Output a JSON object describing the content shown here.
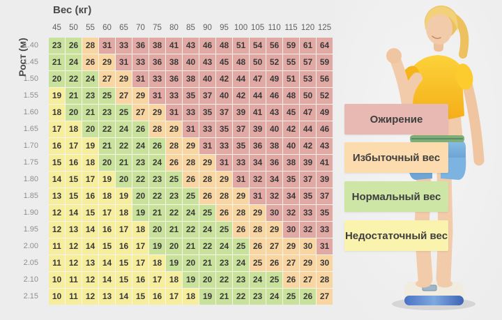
{
  "page": {
    "background": "#ededed"
  },
  "table": {
    "weight_axis_label": "Вес (кг)",
    "height_axis_label": "Рост (м)"
  },
  "legend": {
    "items": [
      {
        "label": "Ожирение",
        "color": "#e7b9b2",
        "code": "R"
      },
      {
        "label": "Избыточный вес",
        "color": "#fcdcae",
        "code": "O"
      },
      {
        "label": "Нормальный вес",
        "color": "#cde6a6",
        "code": "G"
      },
      {
        "label": "Недостаточный вес",
        "color": "#faf3ae",
        "code": "Y"
      }
    ]
  },
  "chart_data": {
    "type": "heatmap",
    "title": "",
    "xlabel": "Вес (кг)",
    "ylabel": "Рост (м)",
    "legend_position": "right",
    "weights_kg": [
      45,
      50,
      55,
      60,
      65,
      70,
      75,
      80,
      85,
      90,
      95,
      100,
      105,
      110,
      115,
      120,
      125
    ],
    "heights_m": [
      "1.40",
      "1.45",
      "1.50",
      "1.55",
      "1.60",
      "1.65",
      "1.70",
      "1.75",
      "1.80",
      "1.85",
      "1.90",
      "1.95",
      "2.00",
      "2.05",
      "2.10",
      "2.15"
    ],
    "bmi_matrix": [
      [
        23,
        26,
        28,
        31,
        33,
        36,
        38,
        41,
        43,
        46,
        48,
        51,
        54,
        56,
        59,
        61,
        64
      ],
      [
        21,
        24,
        26,
        29,
        31,
        33,
        36,
        38,
        40,
        43,
        45,
        48,
        50,
        52,
        55,
        57,
        59
      ],
      [
        20,
        22,
        24,
        27,
        29,
        31,
        33,
        36,
        38,
        40,
        42,
        44,
        47,
        49,
        51,
        53,
        56
      ],
      [
        19,
        21,
        23,
        25,
        27,
        29,
        31,
        33,
        35,
        37,
        40,
        42,
        44,
        46,
        48,
        50,
        52
      ],
      [
        18,
        20,
        21,
        23,
        25,
        27,
        29,
        31,
        33,
        35,
        37,
        39,
        41,
        43,
        45,
        47,
        49
      ],
      [
        17,
        18,
        20,
        22,
        24,
        26,
        28,
        29,
        31,
        33,
        35,
        37,
        39,
        40,
        42,
        44,
        46
      ],
      [
        16,
        17,
        19,
        21,
        22,
        24,
        26,
        28,
        29,
        31,
        33,
        35,
        36,
        38,
        40,
        42,
        43
      ],
      [
        15,
        16,
        18,
        20,
        21,
        23,
        24,
        26,
        28,
        29,
        31,
        33,
        34,
        36,
        38,
        39,
        41
      ],
      [
        14,
        15,
        17,
        19,
        20,
        22,
        23,
        25,
        26,
        28,
        29,
        31,
        32,
        34,
        35,
        37,
        39
      ],
      [
        13,
        15,
        16,
        18,
        19,
        20,
        22,
        23,
        25,
        26,
        28,
        29,
        31,
        32,
        34,
        35,
        37
      ],
      [
        12,
        14,
        15,
        17,
        18,
        19,
        21,
        22,
        24,
        25,
        26,
        28,
        29,
        30,
        32,
        33,
        35
      ],
      [
        12,
        13,
        14,
        16,
        17,
        18,
        20,
        21,
        22,
        24,
        25,
        26,
        28,
        29,
        30,
        32,
        33
      ],
      [
        11,
        12,
        14,
        15,
        16,
        17,
        19,
        20,
        21,
        22,
        24,
        25,
        26,
        27,
        29,
        30,
        31
      ],
      [
        11,
        12,
        13,
        14,
        15,
        17,
        18,
        19,
        20,
        21,
        23,
        24,
        25,
        26,
        27,
        29,
        30
      ],
      [
        10,
        11,
        12,
        14,
        15,
        16,
        17,
        18,
        19,
        20,
        22,
        23,
        24,
        25,
        26,
        27,
        28
      ],
      [
        10,
        11,
        12,
        13,
        14,
        15,
        16,
        17,
        18,
        19,
        21,
        22,
        23,
        24,
        25,
        26,
        27
      ]
    ],
    "category_matrix": [
      [
        "G",
        "G",
        "O",
        "R",
        "R",
        "R",
        "R",
        "R",
        "R",
        "R",
        "R",
        "R",
        "R",
        "R",
        "R",
        "R",
        "R"
      ],
      [
        "G",
        "G",
        "O",
        "O",
        "R",
        "R",
        "R",
        "R",
        "R",
        "R",
        "R",
        "R",
        "R",
        "R",
        "R",
        "R",
        "R"
      ],
      [
        "G",
        "G",
        "G",
        "O",
        "O",
        "R",
        "R",
        "R",
        "R",
        "R",
        "R",
        "R",
        "R",
        "R",
        "R",
        "R",
        "R"
      ],
      [
        "Y",
        "G",
        "G",
        "G",
        "O",
        "O",
        "R",
        "R",
        "R",
        "R",
        "R",
        "R",
        "R",
        "R",
        "R",
        "R",
        "R"
      ],
      [
        "Y",
        "G",
        "G",
        "G",
        "G",
        "O",
        "O",
        "R",
        "R",
        "R",
        "R",
        "R",
        "R",
        "R",
        "R",
        "R",
        "R"
      ],
      [
        "Y",
        "Y",
        "G",
        "G",
        "G",
        "G",
        "O",
        "O",
        "R",
        "R",
        "R",
        "R",
        "R",
        "R",
        "R",
        "R",
        "R"
      ],
      [
        "Y",
        "Y",
        "Y",
        "G",
        "G",
        "G",
        "G",
        "O",
        "O",
        "R",
        "R",
        "R",
        "R",
        "R",
        "R",
        "R",
        "R"
      ],
      [
        "Y",
        "Y",
        "Y",
        "G",
        "G",
        "G",
        "G",
        "O",
        "O",
        "O",
        "R",
        "R",
        "R",
        "R",
        "R",
        "R",
        "R"
      ],
      [
        "Y",
        "Y",
        "Y",
        "Y",
        "G",
        "G",
        "G",
        "G",
        "O",
        "O",
        "O",
        "R",
        "R",
        "R",
        "R",
        "R",
        "R"
      ],
      [
        "Y",
        "Y",
        "Y",
        "Y",
        "Y",
        "G",
        "G",
        "G",
        "G",
        "O",
        "O",
        "O",
        "R",
        "R",
        "R",
        "R",
        "R"
      ],
      [
        "Y",
        "Y",
        "Y",
        "Y",
        "Y",
        "G",
        "G",
        "G",
        "G",
        "G",
        "O",
        "O",
        "O",
        "R",
        "R",
        "R",
        "R"
      ],
      [
        "Y",
        "Y",
        "Y",
        "Y",
        "Y",
        "Y",
        "G",
        "G",
        "G",
        "G",
        "G",
        "O",
        "O",
        "O",
        "R",
        "R",
        "R"
      ],
      [
        "Y",
        "Y",
        "Y",
        "Y",
        "Y",
        "Y",
        "G",
        "G",
        "G",
        "G",
        "G",
        "G",
        "O",
        "O",
        "O",
        "O",
        "R"
      ],
      [
        "Y",
        "Y",
        "Y",
        "Y",
        "Y",
        "Y",
        "Y",
        "G",
        "G",
        "G",
        "G",
        "G",
        "O",
        "O",
        "O",
        "O",
        "O"
      ],
      [
        "Y",
        "Y",
        "Y",
        "Y",
        "Y",
        "Y",
        "Y",
        "Y",
        "G",
        "G",
        "G",
        "G",
        "G",
        "G",
        "O",
        "O",
        "O"
      ],
      [
        "Y",
        "Y",
        "Y",
        "Y",
        "Y",
        "Y",
        "Y",
        "Y",
        "Y",
        "G",
        "G",
        "G",
        "G",
        "G",
        "G",
        "G",
        "O"
      ]
    ],
    "category_colors": {
      "Y": "#f6ee9d",
      "G": "#c8e19b",
      "O": "#f9d5a1",
      "R": "#e2a9a4"
    },
    "category_labels": {
      "R": "Ожирение",
      "O": "Избыточный вес",
      "G": "Нормальный вес",
      "Y": "Недостаточный вес"
    }
  }
}
